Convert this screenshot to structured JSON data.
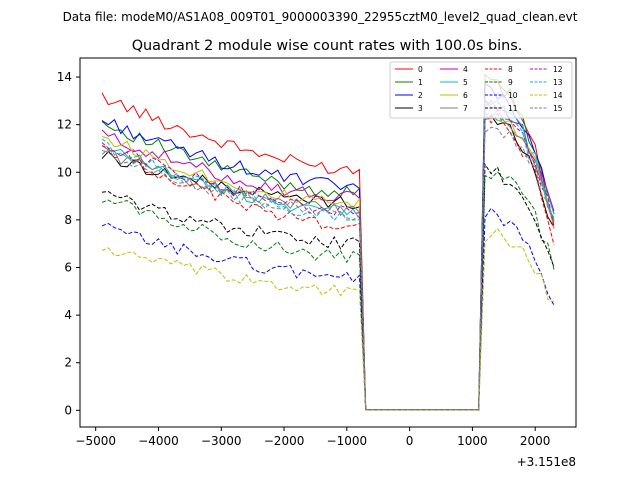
{
  "chart_data": {
    "type": "line",
    "suptitle": "Data file: modeM0/AS1A08_009T01_9000003390_22955cztM0_level2_quad_clean.evt",
    "title": "Quadrant 2 module wise count rates with 100.0s bins.",
    "xlabel": "",
    "ylabel": "",
    "x_offset_label": "+3.151e8",
    "xlim": [
      -5250,
      2650
    ],
    "ylim": [
      -0.7,
      14.8
    ],
    "xticks": [
      -5000,
      -4000,
      -3000,
      -2000,
      -1000,
      0,
      1000,
      2000
    ],
    "xtick_labels": [
      "−5000",
      "−4000",
      "−3000",
      "−2000",
      "−1000",
      "0",
      "1000",
      "2000"
    ],
    "yticks": [
      0,
      2,
      4,
      6,
      8,
      10,
      12,
      14
    ],
    "ytick_labels": [
      "0",
      "2",
      "4",
      "6",
      "8",
      "10",
      "12",
      "14"
    ],
    "segment1": {
      "x_start": -4900,
      "x_step": 100,
      "count": 42
    },
    "gap": {
      "x_start": -700,
      "x_end": 1100,
      "value": 0.02
    },
    "segment2": {
      "x_start": 1200,
      "x_step": 100,
      "count": 12
    },
    "series": [
      {
        "name": "0",
        "color": "#ff0000",
        "dash": false,
        "start1": 13.2,
        "end1": 10.1,
        "start2": 14.0,
        "end2": 7.6
      },
      {
        "name": "1",
        "color": "#008000",
        "dash": false,
        "start1": 12.1,
        "end1": 9.1,
        "start2": 13.8,
        "end2": 7.8
      },
      {
        "name": "2",
        "color": "#0000ff",
        "dash": false,
        "start1": 12.2,
        "end1": 9.4,
        "start2": 13.4,
        "end2": 8.1
      },
      {
        "name": "3",
        "color": "#000000",
        "dash": false,
        "start1": 10.7,
        "end1": 8.7,
        "start2": 12.2,
        "end2": 7.4
      },
      {
        "name": "4",
        "color": "#c000c0",
        "dash": false,
        "start1": 11.6,
        "end1": 8.9,
        "start2": 13.0,
        "end2": 8.2
      },
      {
        "name": "5",
        "color": "#00bfbf",
        "dash": false,
        "start1": 11.0,
        "end1": 8.3,
        "start2": 12.9,
        "end2": 8.1
      },
      {
        "name": "6",
        "color": "#bfbf00",
        "dash": false,
        "start1": 11.5,
        "end1": 8.6,
        "start2": 12.6,
        "end2": 7.9
      },
      {
        "name": "7",
        "color": "#808080",
        "dash": false,
        "start1": 10.9,
        "end1": 8.4,
        "start2": 12.5,
        "end2": 7.7
      },
      {
        "name": "8",
        "color": "#ff0000",
        "dash": true,
        "start1": 11.1,
        "end1": 7.7,
        "start2": 12.3,
        "end2": 7.2
      },
      {
        "name": "9",
        "color": "#008000",
        "dash": true,
        "start1": 9.0,
        "end1": 6.4,
        "start2": 10.0,
        "end2": 6.1
      },
      {
        "name": "10",
        "color": "#0000ff",
        "dash": true,
        "start1": 7.7,
        "end1": 5.6,
        "start2": 8.2,
        "end2": 4.5
      },
      {
        "name": "11",
        "color": "#000000",
        "dash": true,
        "start1": 9.1,
        "end1": 7.0,
        "start2": 10.0,
        "end2": 6.0
      },
      {
        "name": "12",
        "color": "#c000c0",
        "dash": true,
        "start1": 11.3,
        "end1": 8.3,
        "start2": 12.8,
        "end2": 7.8
      },
      {
        "name": "13",
        "color": "#00bfbf",
        "dash": true,
        "start1": 11.2,
        "end1": 8.1,
        "start2": 12.6,
        "end2": 8.0
      },
      {
        "name": "14",
        "color": "#bfbf00",
        "dash": true,
        "start1": 6.8,
        "end1": 5.0,
        "start2": 7.4,
        "end2": 4.3
      },
      {
        "name": "15",
        "color": "#808080",
        "dash": true,
        "start1": 10.8,
        "end1": 8.2,
        "start2": 12.0,
        "end2": 7.7
      }
    ]
  }
}
